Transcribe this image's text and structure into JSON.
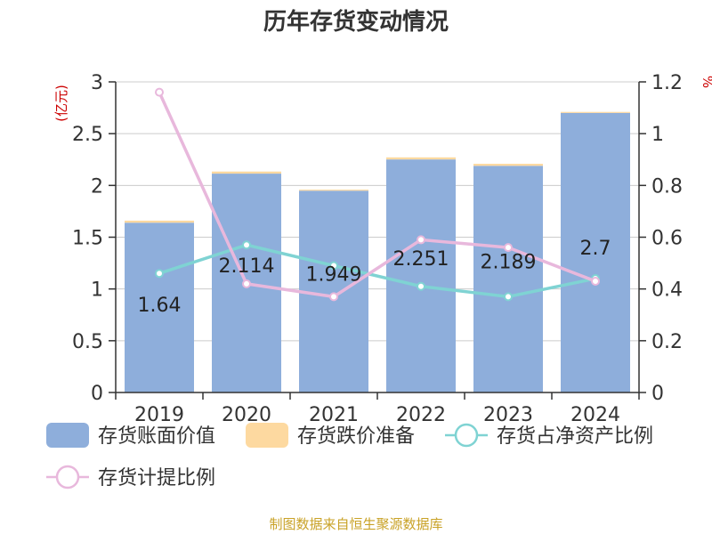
{
  "chart_data": {
    "type": "bar",
    "title": "历年存货变动情况",
    "categories": [
      "2019",
      "2020",
      "2021",
      "2022",
      "2023",
      "2024"
    ],
    "y_left": {
      "label": "(亿元)",
      "range": [
        0,
        3
      ],
      "ticks": [
        "0",
        "0.5",
        "1",
        "1.5",
        "2",
        "2.5",
        "3"
      ]
    },
    "y_right": {
      "label": "%",
      "range": [
        0,
        1.2
      ],
      "ticks": [
        "0",
        "0.2",
        "0.4",
        "0.6",
        "0.8",
        "1",
        "1.2"
      ]
    },
    "bar_series": [
      {
        "name": "存货账面价值",
        "color": "#8eaedb",
        "values": [
          1.64,
          2.114,
          1.949,
          2.251,
          2.189,
          2.7
        ],
        "data_labels": [
          "1.64",
          "2.114",
          "1.949",
          "2.251",
          "2.189",
          "2.7"
        ]
      },
      {
        "name": "存货跌价准备",
        "color": "#fdd9a0",
        "values": [
          0.02,
          0.02,
          0.01,
          0.02,
          0.02,
          0.01
        ]
      }
    ],
    "line_series": [
      {
        "name": "存货占净资产比例",
        "color": "#7fd3d3",
        "values": [
          0.46,
          0.57,
          0.49,
          0.41,
          0.37,
          0.44
        ]
      },
      {
        "name": "存货计提比例",
        "color": "#e8b8dc",
        "values": [
          1.16,
          0.42,
          0.37,
          0.59,
          0.56,
          0.43
        ]
      }
    ],
    "grid": true,
    "legend_position": "bottom"
  },
  "source": "制图数据来自恒生聚源数据库"
}
